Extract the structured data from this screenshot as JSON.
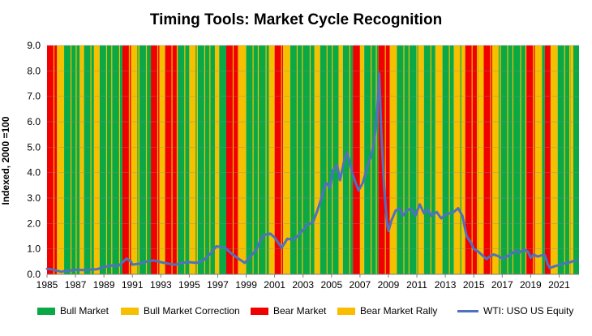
{
  "chart_data": {
    "type": "line",
    "title": "Timing Tools: Market Cycle Recognition",
    "ylabel": "Indexed, 2000 =100",
    "xlabel": "",
    "ylim": [
      0,
      9
    ],
    "xlim": [
      1985,
      2022.4
    ],
    "yticks": [
      "0.0",
      "1.0",
      "2.0",
      "3.0",
      "4.0",
      "5.0",
      "6.0",
      "7.0",
      "8.0",
      "9.0"
    ],
    "xticks": [
      "1985",
      "1987",
      "1989",
      "1991",
      "1993",
      "1995",
      "1997",
      "1999",
      "2001",
      "2003",
      "2005",
      "2007",
      "2009",
      "2011",
      "2013",
      "2015",
      "2017",
      "2019",
      "2021"
    ],
    "grid": "horizontal",
    "legend_position": "bottom",
    "colors": {
      "bull": "#0aa847",
      "correction": "#f4c000",
      "bear": "#f00000",
      "rally": "#fbbc00",
      "line": "#4f71be"
    },
    "legend": [
      {
        "label": "Bull Market",
        "key": "bull"
      },
      {
        "label": "Bull Market Correction",
        "key": "correction"
      },
      {
        "label": "Bear Market",
        "key": "bear"
      },
      {
        "label": "Bear Market Rally",
        "key": "rally"
      },
      {
        "label": "WTI: USO US Equity",
        "key": "line"
      }
    ],
    "regimes": [
      [
        "bear",
        1985.0
      ],
      [
        "correction",
        1985.7
      ],
      [
        "bull",
        1986.2
      ],
      [
        "correction",
        1987.3
      ],
      [
        "bull",
        1987.6
      ],
      [
        "correction",
        1988.3
      ],
      [
        "bull",
        1988.7
      ],
      [
        "bear",
        1990.3
      ],
      [
        "correction",
        1990.9
      ],
      [
        "bull",
        1991.5
      ],
      [
        "bear",
        1992.3
      ],
      [
        "correction",
        1992.9
      ],
      [
        "bear",
        1993.3
      ],
      [
        "bull",
        1994.2
      ],
      [
        "correction",
        1995.0
      ],
      [
        "bull",
        1995.6
      ],
      [
        "correction",
        1996.8
      ],
      [
        "bull",
        1997.1
      ],
      [
        "bear",
        1997.6
      ],
      [
        "correction",
        1998.5
      ],
      [
        "bull",
        1999.0
      ],
      [
        "correction",
        2000.6
      ],
      [
        "bear",
        2001.0
      ],
      [
        "correction",
        2001.6
      ],
      [
        "bull",
        2002.1
      ],
      [
        "correction",
        2003.8
      ],
      [
        "bull",
        2004.2
      ],
      [
        "correction",
        2005.5
      ],
      [
        "bull",
        2005.8
      ],
      [
        "bear",
        2006.5
      ],
      [
        "correction",
        2007.0
      ],
      [
        "bull",
        2007.3
      ],
      [
        "bear",
        2008.3
      ],
      [
        "correction",
        2009.1
      ],
      [
        "bull",
        2009.6
      ],
      [
        "correction",
        2011.1
      ],
      [
        "bull",
        2011.5
      ],
      [
        "correction",
        2012.3
      ],
      [
        "bull",
        2012.8
      ],
      [
        "correction",
        2013.6
      ],
      [
        "bear",
        2014.4
      ],
      [
        "correction",
        2015.3
      ],
      [
        "bear",
        2015.7
      ],
      [
        "correction",
        2016.3
      ],
      [
        "bull",
        2016.9
      ],
      [
        "bear",
        2018.7
      ],
      [
        "correction",
        2019.3
      ],
      [
        "bull",
        2019.8
      ],
      [
        "bear",
        2020.0
      ],
      [
        "correction",
        2020.4
      ],
      [
        "bull",
        2020.9
      ],
      [
        "correction",
        2021.8
      ],
      [
        "bull",
        2022.0
      ]
    ],
    "series": [
      {
        "name": "WTI: USO US Equity",
        "x": [
          1985.0,
          1985.5,
          1986.0,
          1986.2,
          1987.0,
          1987.5,
          1988.0,
          1988.5,
          1989.0,
          1989.5,
          1990.0,
          1990.6,
          1990.9,
          1991.0,
          1991.5,
          1992.0,
          1992.5,
          1993.0,
          1993.5,
          1994.0,
          1994.5,
          1995.0,
          1995.5,
          1996.0,
          1996.5,
          1996.9,
          1997.5,
          1998.0,
          1998.5,
          1998.9,
          1999.3,
          1999.7,
          2000.0,
          2000.3,
          2000.7,
          2001.0,
          2001.5,
          2001.9,
          2002.3,
          2002.7,
          2003.0,
          2003.3,
          2003.7,
          2004.0,
          2004.3,
          2004.6,
          2004.9,
          2005.1,
          2005.4,
          2005.6,
          2005.9,
          2006.1,
          2006.5,
          2006.9,
          2007.2,
          2007.5,
          2007.8,
          2008.0,
          2008.2,
          2008.35,
          2008.5,
          2008.7,
          2008.9,
          2009.0,
          2009.2,
          2009.5,
          2009.8,
          2010.0,
          2010.3,
          2010.6,
          2010.9,
          2011.2,
          2011.5,
          2011.8,
          2012.0,
          2012.4,
          2012.7,
          2013.0,
          2013.3,
          2013.6,
          2013.9,
          2014.2,
          2014.5,
          2014.8,
          2015.0,
          2015.3,
          2015.6,
          2015.9,
          2016.1,
          2016.4,
          2016.7,
          2017.0,
          2017.3,
          2017.6,
          2017.9,
          2018.2,
          2018.5,
          2018.8,
          2019.0,
          2019.2,
          2019.5,
          2019.8,
          2020.0,
          2020.2,
          2020.35,
          2020.6,
          2020.9,
          2021.2,
          2021.5,
          2021.8,
          2022.0,
          2022.3
        ],
        "y": [
          0.22,
          0.18,
          0.1,
          0.12,
          0.18,
          0.17,
          0.18,
          0.2,
          0.28,
          0.35,
          0.32,
          0.62,
          0.5,
          0.38,
          0.42,
          0.5,
          0.55,
          0.48,
          0.42,
          0.38,
          0.45,
          0.48,
          0.45,
          0.55,
          0.82,
          1.1,
          1.05,
          0.8,
          0.6,
          0.45,
          0.7,
          0.95,
          1.35,
          1.55,
          1.6,
          1.45,
          1.05,
          1.4,
          1.35,
          1.55,
          1.75,
          1.95,
          2.05,
          2.5,
          3.0,
          3.6,
          3.4,
          4.1,
          4.3,
          3.7,
          4.5,
          4.8,
          3.9,
          3.3,
          3.6,
          4.2,
          4.7,
          5.2,
          6.3,
          7.9,
          5.6,
          3.4,
          2.0,
          1.7,
          2.1,
          2.5,
          2.6,
          2.3,
          2.5,
          2.6,
          2.3,
          2.75,
          2.4,
          2.55,
          2.3,
          2.45,
          2.2,
          2.35,
          2.4,
          2.45,
          2.6,
          2.3,
          1.5,
          1.25,
          1.0,
          0.9,
          0.75,
          0.6,
          0.7,
          0.78,
          0.72,
          0.62,
          0.7,
          0.78,
          0.92,
          0.85,
          0.98,
          0.9,
          0.65,
          0.78,
          0.7,
          0.75,
          0.75,
          0.4,
          0.25,
          0.3,
          0.35,
          0.4,
          0.45,
          0.48,
          0.52,
          0.55
        ]
      }
    ]
  }
}
